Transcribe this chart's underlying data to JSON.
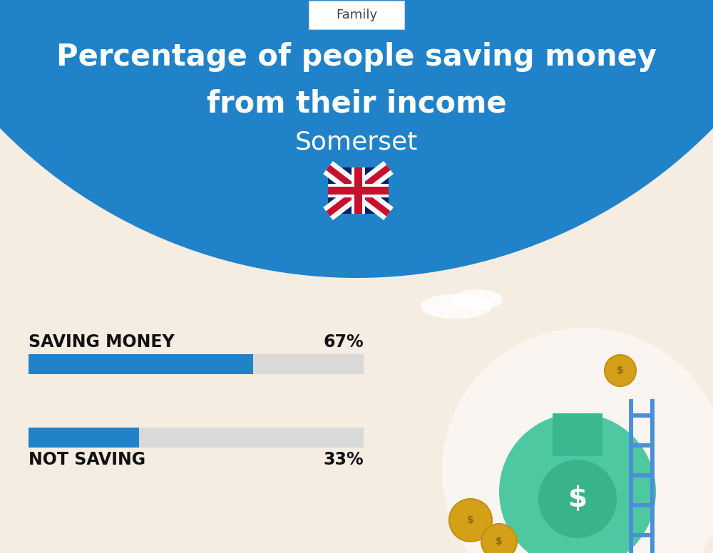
{
  "title_line1": "Percentage of people saving money",
  "title_line2": "from their income",
  "subtitle": "Somerset",
  "category_label": "Family",
  "bg_color": "#f5ece2",
  "blue_color": "#2082c8",
  "bar_bg_color": "#d9d9d9",
  "title_color": "#ffffff",
  "subtitle_color": "#ffffff",
  "label_color": "#111111",
  "saving_label": "SAVING MONEY",
  "saving_value": 67,
  "saving_pct_text": "67%",
  "not_saving_label": "NOT SAVING",
  "not_saving_value": 33,
  "not_saving_pct_text": "33%",
  "bar_total": 100,
  "title_fontsize": 30,
  "subtitle_fontsize": 26,
  "label_fontsize": 17,
  "pct_fontsize": 17,
  "category_fontsize": 13,
  "fig_width": 10.0,
  "fig_height": 7.76,
  "dpi": 100
}
